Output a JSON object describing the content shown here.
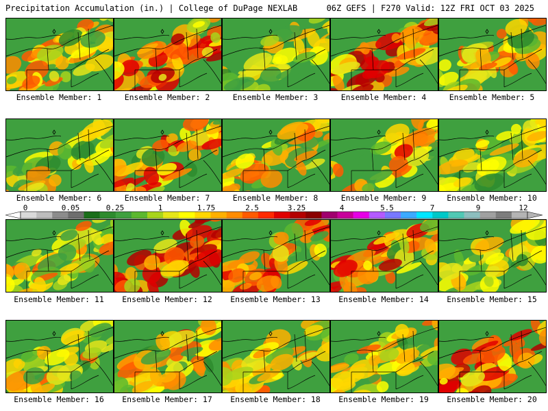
{
  "header": {
    "left": "Precipitation Accumulation (in.) | College of DuPage NEXLAB",
    "right": "06Z GEFS | F270 Valid: 12Z FRI OCT 03 2025"
  },
  "caption_prefix": "Ensemble Member:",
  "members": [
    {
      "label": "Ensemble Member: 1",
      "intensity": 0.55
    },
    {
      "label": "Ensemble Member: 2",
      "intensity": 0.75
    },
    {
      "label": "Ensemble Member: 3",
      "intensity": 0.25
    },
    {
      "label": "Ensemble Member: 4",
      "intensity": 0.8
    },
    {
      "label": "Ensemble Member: 5",
      "intensity": 0.55
    },
    {
      "label": "Ensemble Member: 6",
      "intensity": 0.35
    },
    {
      "label": "Ensemble Member: 7",
      "intensity": 0.7
    },
    {
      "label": "Ensemble Member: 8",
      "intensity": 0.45
    },
    {
      "label": "Ensemble Member: 9",
      "intensity": 0.6
    },
    {
      "label": "Ensemble Member: 10",
      "intensity": 0.3
    },
    {
      "label": "Ensemble Member: 11",
      "intensity": 0.55
    },
    {
      "label": "Ensemble Member: 12",
      "intensity": 0.85
    },
    {
      "label": "Ensemble Member: 13",
      "intensity": 0.65
    },
    {
      "label": "Ensemble Member: 14",
      "intensity": 0.7
    },
    {
      "label": "Ensemble Member: 15",
      "intensity": 0.35
    },
    {
      "label": "Ensemble Member: 16",
      "intensity": 0.45
    },
    {
      "label": "Ensemble Member: 17",
      "intensity": 0.6
    },
    {
      "label": "Ensemble Member: 18",
      "intensity": 0.5
    },
    {
      "label": "Ensemble Member: 19",
      "intensity": 0.45
    },
    {
      "label": "Ensemble Member: 20",
      "intensity": 0.85
    }
  ],
  "colorbar": {
    "tick_labels": [
      "0",
      "0.05",
      "0.25",
      "1",
      "1.75",
      "2.5",
      "3.25",
      "4",
      "5.5",
      "7",
      "9",
      "12"
    ],
    "colors": [
      "#d9d9d9",
      "#bdbdbd",
      "#8c8c8c",
      "#6e6e6e",
      "#1a6e1a",
      "#2e8b2e",
      "#3fa03f",
      "#5cb82f",
      "#a8d41c",
      "#e6e619",
      "#ffff00",
      "#ffd700",
      "#ffb000",
      "#ff8c00",
      "#ff5a00",
      "#ff2a00",
      "#e00000",
      "#b40000",
      "#8b0000",
      "#a0006e",
      "#c8009b",
      "#e600e6",
      "#b45aff",
      "#7878ff",
      "#3caaff",
      "#00e6ff",
      "#00c8c8",
      "#50c8b4",
      "#8cbebe",
      "#a0a0a0",
      "#7d7d7d",
      "#b4b4b4"
    ]
  }
}
